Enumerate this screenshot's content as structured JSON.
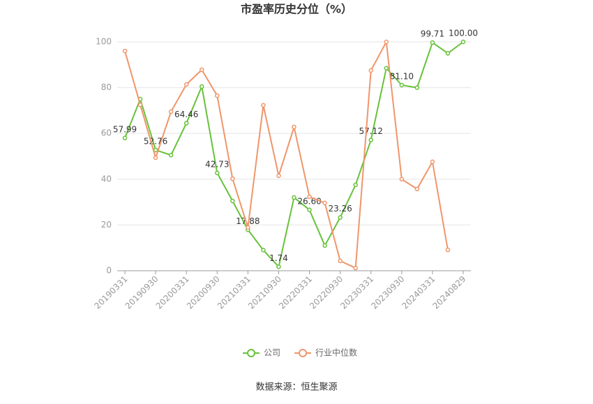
{
  "chart_data": {
    "type": "line",
    "title": "市盈率历史分位（%）",
    "categories": [
      "20190331",
      null,
      "20190930",
      null,
      "20200331",
      null,
      "20200930",
      null,
      "20210331",
      null,
      "20210930",
      null,
      "20220331",
      null,
      "20220930",
      null,
      "20230331",
      null,
      "20230930",
      null,
      "20240331",
      null,
      "20240829"
    ],
    "series": [
      {
        "name": "公司",
        "color": "#67c23a",
        "values": [
          57.99,
          75,
          52.76,
          50.5,
          64.46,
          80.5,
          42.73,
          30.5,
          17.88,
          9,
          1.74,
          32,
          26.6,
          11,
          23.26,
          37.5,
          57.12,
          88.5,
          81.1,
          80,
          99.71,
          95,
          100
        ],
        "value_labels": [
          "57.99",
          null,
          "52.76",
          null,
          "64.46",
          null,
          "42.73",
          null,
          "17.88",
          null,
          "1.74",
          null,
          "26.60",
          null,
          "23.26",
          null,
          "57.12",
          null,
          "81.10",
          null,
          "99.71",
          null,
          "100.00"
        ]
      },
      {
        "name": "行业中位数",
        "color": "#f0956a",
        "values": [
          96,
          72.5,
          49.4,
          69.5,
          81.4,
          87.8,
          76.5,
          40.2,
          18.9,
          72.3,
          41.5,
          62.8,
          32.3,
          29.6,
          4.3,
          1.2,
          87.5,
          100,
          40,
          35.7,
          47.6,
          9.1,
          null
        ]
      }
    ],
    "ylim": [
      0,
      100
    ],
    "yticks": [
      0,
      20,
      40,
      60,
      80,
      100
    ],
    "grid": true,
    "source": "数据来源：恒生聚源"
  }
}
